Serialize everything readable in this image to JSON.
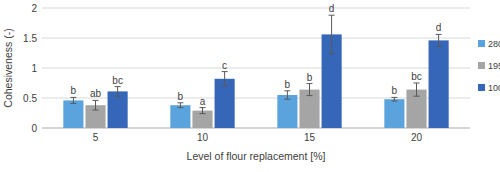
{
  "chart_data": {
    "type": "bar",
    "x_label": "Level of flour replacement [%]",
    "y_label": "Cohesiveness (-)",
    "categories": [
      "5",
      "10",
      "15",
      "20"
    ],
    "series": [
      {
        "name": "280",
        "color": "#5ba3dc",
        "values": [
          0.46,
          0.38,
          0.55,
          0.48
        ],
        "errors": [
          0.05,
          0.04,
          0.07,
          0.03
        ],
        "letters": [
          "b",
          "b",
          "b",
          "b"
        ]
      },
      {
        "name": "195",
        "color": "#a5a5a5",
        "values": [
          0.38,
          0.29,
          0.64,
          0.64
        ],
        "errors": [
          0.08,
          0.05,
          0.1,
          0.11
        ],
        "letters": [
          "ab",
          "a",
          "b",
          "bc"
        ]
      },
      {
        "name": "100",
        "color": "#3566b8",
        "values": [
          0.61,
          0.82,
          1.56,
          1.46
        ],
        "errors": [
          0.08,
          0.12,
          0.32,
          0.1
        ],
        "letters": [
          "bc",
          "c",
          "d",
          "d"
        ]
      }
    ],
    "ylim": [
      0,
      2
    ],
    "yticks": [
      0,
      0.5,
      1,
      1.5,
      2
    ],
    "grid": true,
    "legend": "right"
  }
}
